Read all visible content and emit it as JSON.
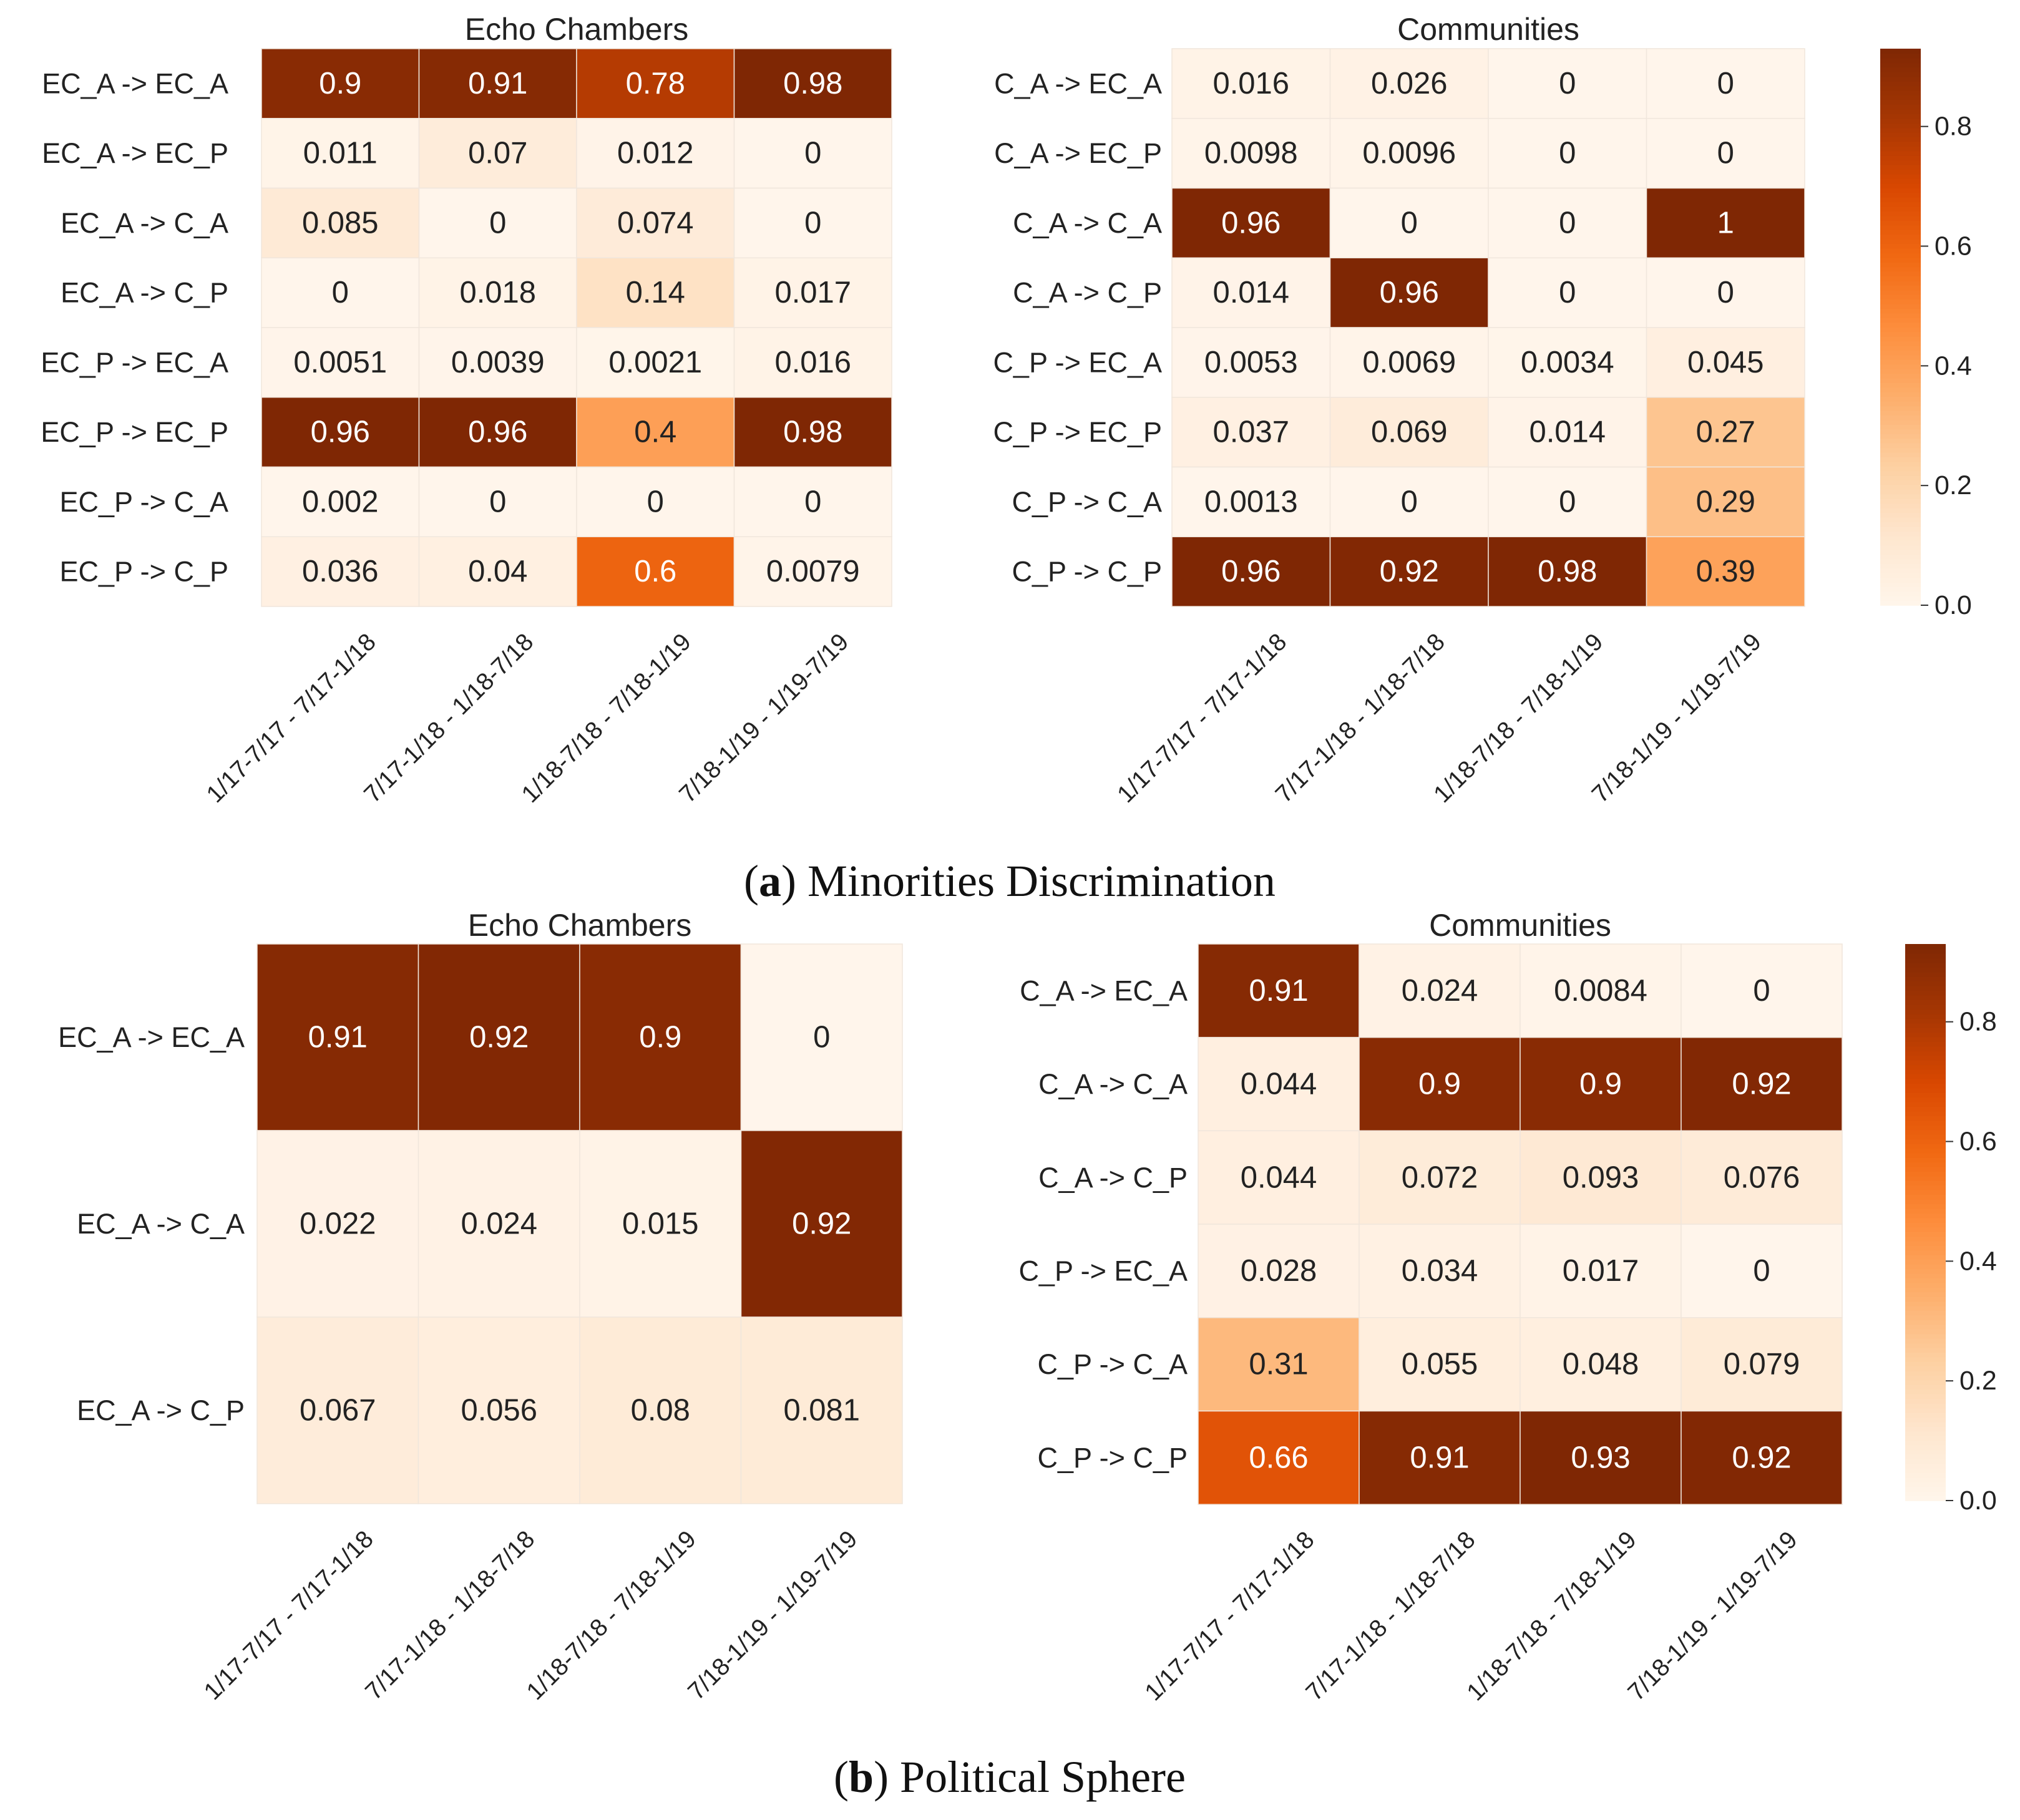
{
  "colors": {
    "scale": [
      "#fff5eb",
      "#fee6ce",
      "#fdd0a2",
      "#fdae6b",
      "#fd8d3c",
      "#f16913",
      "#d94801",
      "#a63603",
      "#7f2704"
    ],
    "grid": "#f0e6dc",
    "text_dark": "#222222",
    "text_light": "#ffffff"
  },
  "panels": [
    {
      "caption_letter": "a",
      "caption_text": "Minorities Discrimination",
      "colorbar": {
        "vmin": 0.0,
        "vmax": 0.93,
        "ticks": [
          0.0,
          0.2,
          0.4,
          0.6,
          0.8
        ],
        "tick_labels": [
          "0.0",
          "0.2",
          "0.4",
          "0.6",
          "0.8"
        ]
      }
    },
    {
      "caption_letter": "b",
      "caption_text": "Political Sphere",
      "colorbar": {
        "vmin": 0.0,
        "vmax": 0.93,
        "ticks": [
          0.0,
          0.2,
          0.4,
          0.6,
          0.8
        ],
        "tick_labels": [
          "0.0",
          "0.2",
          "0.4",
          "0.6",
          "0.8"
        ]
      }
    }
  ],
  "chart_data": [
    {
      "type": "heatmap",
      "panel": "a",
      "title": "Echo Chambers",
      "x_labels": [
        "1/17-7/17 - 7/17-1/18",
        "7/17-1/18 - 1/18-7/18",
        "1/18-7/18 - 7/18-1/19",
        "7/18-1/19 - 1/19-7/19"
      ],
      "y_labels": [
        "EC_A -> EC_A",
        "EC_A  -> EC_P",
        "EC_A  -> C_A",
        "EC_A  -> C_P",
        "EC_P -> EC_A",
        "EC_P -> EC_P",
        "EC_P -> C_A",
        "EC_P -> C_P"
      ],
      "values": [
        [
          0.9,
          0.91,
          0.78,
          0.98
        ],
        [
          0.011,
          0.07,
          0.012,
          0
        ],
        [
          0.085,
          0,
          0.074,
          0
        ],
        [
          0,
          0.018,
          0.14,
          0.017
        ],
        [
          0.0051,
          0.0039,
          0.0021,
          0.016
        ],
        [
          0.96,
          0.96,
          0.4,
          0.98
        ],
        [
          0.002,
          0,
          0,
          0
        ],
        [
          0.036,
          0.04,
          0.6,
          0.0079
        ]
      ],
      "value_labels": [
        [
          "0.9",
          "0.91",
          "0.78",
          "0.98"
        ],
        [
          "0.011",
          "0.07",
          "0.012",
          "0"
        ],
        [
          "0.085",
          "0",
          "0.074",
          "0"
        ],
        [
          "0",
          "0.018",
          "0.14",
          "0.017"
        ],
        [
          "0.0051",
          "0.0039",
          "0.0021",
          "0.016"
        ],
        [
          "0.96",
          "0.96",
          "0.4",
          "0.98"
        ],
        [
          "0.002",
          "0",
          "0",
          "0"
        ],
        [
          "0.036",
          "0.04",
          "0.6",
          "0.0079"
        ]
      ]
    },
    {
      "type": "heatmap",
      "panel": "a",
      "title": "Communities",
      "x_labels": [
        "1/17-7/17 - 7/17-1/18",
        "7/17-1/18 - 1/18-7/18",
        "1/18-7/18 - 7/18-1/19",
        "7/18-1/19 - 1/19-7/19"
      ],
      "y_labels": [
        "C_A -> EC_A",
        "C_A  -> EC_P",
        "C_A  -> C_A",
        "C_A  -> C_P",
        "C_P -> EC_A",
        "C_P -> EC_P",
        "C_P -> C_A",
        "C_P -> C_P"
      ],
      "values": [
        [
          0.016,
          0.026,
          0,
          0
        ],
        [
          0.0098,
          0.0096,
          0,
          0
        ],
        [
          0.96,
          0,
          0,
          1
        ],
        [
          0.014,
          0.96,
          0,
          0
        ],
        [
          0.0053,
          0.0069,
          0.0034,
          0.045
        ],
        [
          0.037,
          0.069,
          0.014,
          0.27
        ],
        [
          0.0013,
          0,
          0,
          0.29
        ],
        [
          0.96,
          0.92,
          0.98,
          0.39
        ]
      ],
      "value_labels": [
        [
          "0.016",
          "0.026",
          "0",
          "0"
        ],
        [
          "0.0098",
          "0.0096",
          "0",
          "0"
        ],
        [
          "0.96",
          "0",
          "0",
          "1"
        ],
        [
          "0.014",
          "0.96",
          "0",
          "0"
        ],
        [
          "0.0053",
          "0.0069",
          "0.0034",
          "0.045"
        ],
        [
          "0.037",
          "0.069",
          "0.014",
          "0.27"
        ],
        [
          "0.0013",
          "0",
          "0",
          "0.29"
        ],
        [
          "0.96",
          "0.92",
          "0.98",
          "0.39"
        ]
      ]
    },
    {
      "type": "heatmap",
      "panel": "b",
      "title": "Echo Chambers",
      "x_labels": [
        "1/17-7/17 - 7/17-1/18",
        "7/17-1/18 - 1/18-7/18",
        "1/18-7/18 - 7/18-1/19",
        "7/18-1/19 - 1/19-7/19"
      ],
      "y_labels": [
        "EC_A -> EC_A",
        "EC_A  -> C_A",
        "EC_A  -> C_P"
      ],
      "values": [
        [
          0.91,
          0.92,
          0.9,
          0
        ],
        [
          0.022,
          0.024,
          0.015,
          0.92
        ],
        [
          0.067,
          0.056,
          0.08,
          0.081
        ]
      ],
      "value_labels": [
        [
          "0.91",
          "0.92",
          "0.9",
          "0"
        ],
        [
          "0.022",
          "0.024",
          "0.015",
          "0.92"
        ],
        [
          "0.067",
          "0.056",
          "0.08",
          "0.081"
        ]
      ]
    },
    {
      "type": "heatmap",
      "panel": "b",
      "title": "Communities",
      "x_labels": [
        "1/17-7/17 - 7/17-1/18",
        "7/17-1/18 - 1/18-7/18",
        "1/18-7/18 - 7/18-1/19",
        "7/18-1/19 - 1/19-7/19"
      ],
      "y_labels": [
        "C_A -> EC_A",
        "C_A  -> C_A",
        "C_A  -> C_P",
        "C_P -> EC_A",
        "C_P  -> C_A",
        "C_P  -> C_P"
      ],
      "values": [
        [
          0.91,
          0.024,
          0.0084,
          0
        ],
        [
          0.044,
          0.9,
          0.9,
          0.92
        ],
        [
          0.044,
          0.072,
          0.093,
          0.076
        ],
        [
          0.028,
          0.034,
          0.017,
          0
        ],
        [
          0.31,
          0.055,
          0.048,
          0.079
        ],
        [
          0.66,
          0.91,
          0.93,
          0.92
        ]
      ],
      "value_labels": [
        [
          "0.91",
          "0.024",
          "0.0084",
          "0"
        ],
        [
          "0.044",
          "0.9",
          "0.9",
          "0.92"
        ],
        [
          "0.044",
          "0.072",
          "0.093",
          "0.076"
        ],
        [
          "0.028",
          "0.034",
          "0.017",
          "0"
        ],
        [
          "0.31",
          "0.055",
          "0.048",
          "0.079"
        ],
        [
          "0.66",
          "0.91",
          "0.93",
          "0.92"
        ]
      ]
    }
  ]
}
